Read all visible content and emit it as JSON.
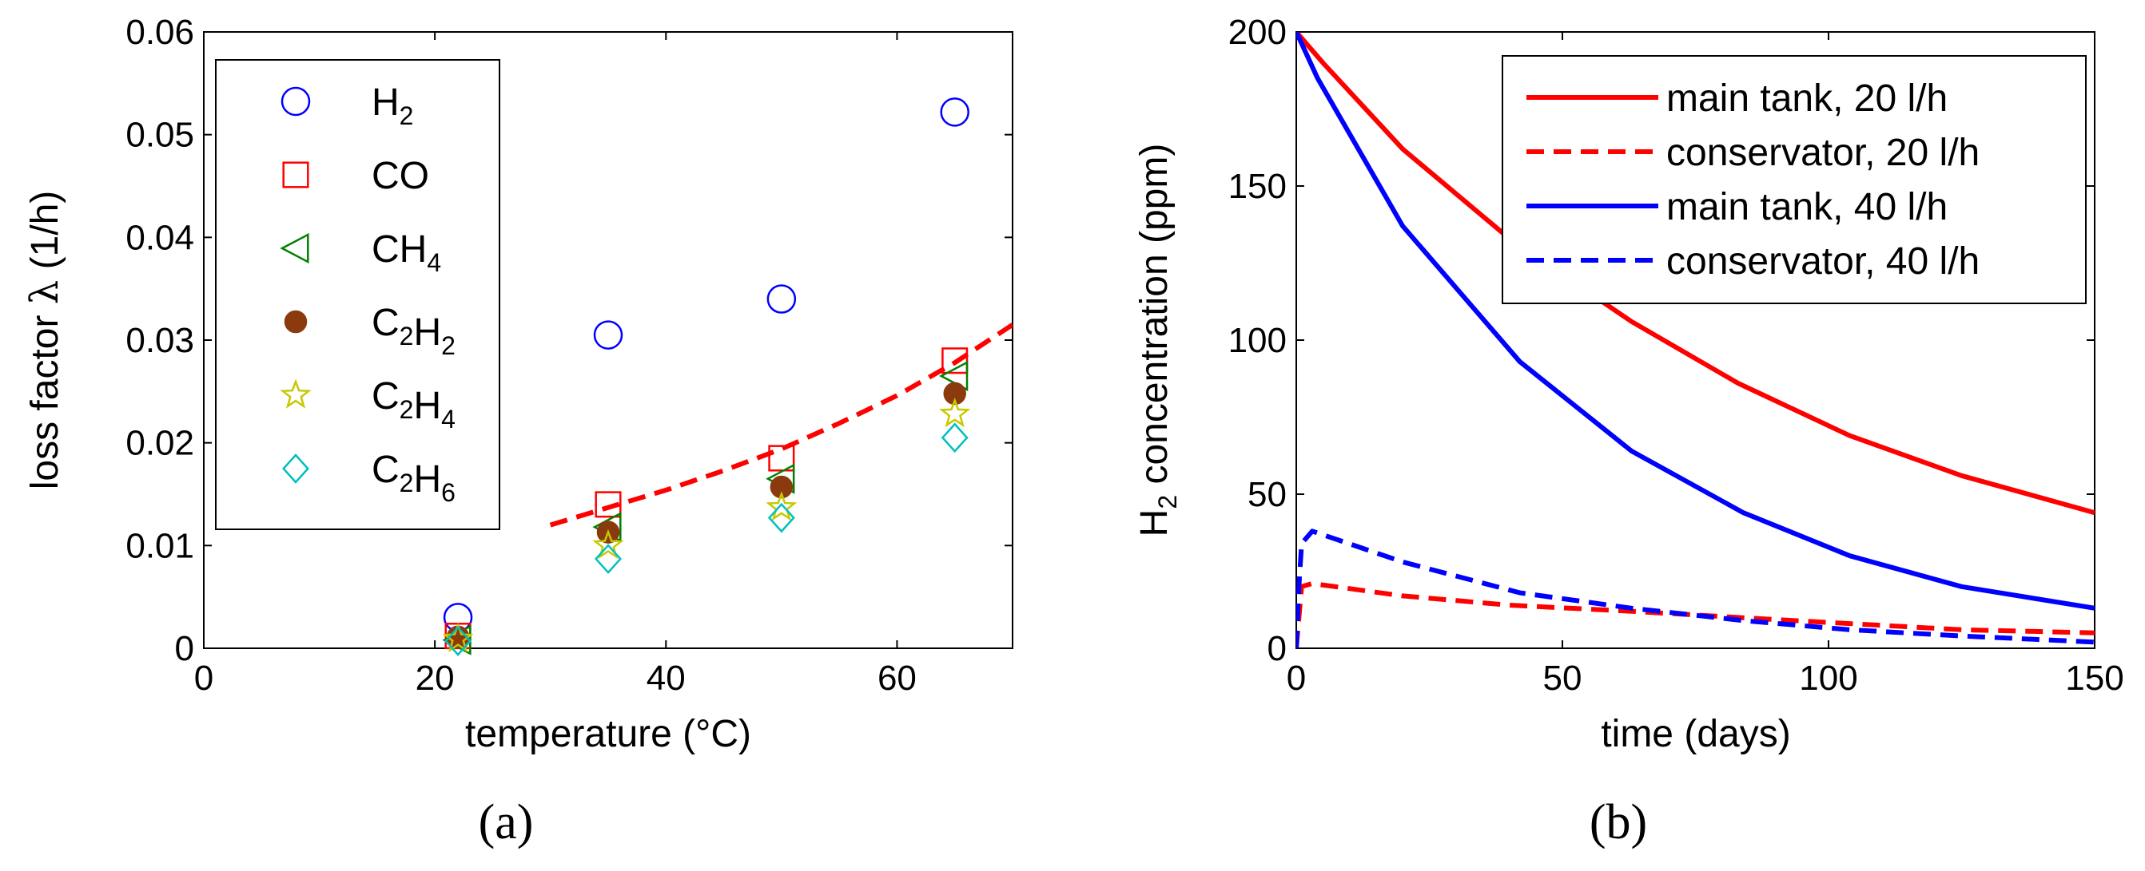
{
  "chart_data": [
    {
      "id": "a",
      "type": "scatter",
      "panel_label": "(a)",
      "xlabel": "temperature (°C)",
      "ylabel": {
        "text": "loss factor ",
        "symbol": "λ",
        "unit": " (1/h)"
      },
      "xlim": [
        0,
        70
      ],
      "ylim": [
        0,
        0.06
      ],
      "xticks": [
        0,
        20,
        40,
        60
      ],
      "yticks": [
        0,
        0.01,
        0.02,
        0.03,
        0.04,
        0.05,
        0.06
      ],
      "ytick_labels": [
        "0",
        "0.01",
        "0.02",
        "0.03",
        "0.04",
        "0.05",
        "0.06"
      ],
      "legend_position": "upper-left",
      "series": [
        {
          "name": "H2",
          "label_main": "H",
          "label_parts": [
            {
              "t": "H",
              "sub": "2"
            }
          ],
          "marker": "circle",
          "color": "#0000ff",
          "filled": false,
          "x": [
            22,
            35,
            50,
            65
          ],
          "y": [
            0.003,
            0.0305,
            0.034,
            0.0522
          ]
        },
        {
          "name": "CO",
          "label_parts": [
            {
              "t": "CO",
              "sub": ""
            }
          ],
          "marker": "square",
          "color": "#ff0000",
          "filled": false,
          "x": [
            22,
            35,
            50,
            65
          ],
          "y": [
            0.0012,
            0.014,
            0.0185,
            0.028
          ]
        },
        {
          "name": "CH4",
          "label_parts": [
            {
              "t": "CH",
              "sub": "4"
            }
          ],
          "marker": "triangle-left",
          "color": "#008000",
          "filled": false,
          "x": [
            22,
            35,
            50,
            65
          ],
          "y": [
            0.0008,
            0.0118,
            0.0165,
            0.0265
          ]
        },
        {
          "name": "C2H2",
          "label_parts": [
            {
              "t": "C",
              "sub": "2"
            },
            {
              "t": "H",
              "sub": "2"
            }
          ],
          "marker": "circle",
          "color": "#8b3a0e",
          "filled": true,
          "x": [
            22,
            35,
            50,
            65
          ],
          "y": [
            0.0011,
            0.0113,
            0.0157,
            0.0248
          ]
        },
        {
          "name": "C2H4",
          "label_parts": [
            {
              "t": "C",
              "sub": "2"
            },
            {
              "t": "H",
              "sub": "4"
            }
          ],
          "marker": "star",
          "color": "#c8c800",
          "filled": false,
          "x": [
            22,
            35,
            50,
            65
          ],
          "y": [
            0.0009,
            0.01,
            0.0137,
            0.0228
          ]
        },
        {
          "name": "C2H6",
          "label_parts": [
            {
              "t": "C",
              "sub": "2"
            },
            {
              "t": "H",
              "sub": "6"
            }
          ],
          "marker": "diamond",
          "color": "#00c0c0",
          "filled": false,
          "x": [
            22,
            35,
            50,
            65
          ],
          "y": [
            0.0007,
            0.0087,
            0.0127,
            0.0205
          ]
        }
      ],
      "fit_line": {
        "name": "fit",
        "color": "#ff0000",
        "style": "dashed",
        "x": [
          30,
          35,
          40,
          45,
          50,
          55,
          60,
          65,
          70
        ],
        "y": [
          0.012,
          0.0137,
          0.0154,
          0.0173,
          0.0194,
          0.0219,
          0.0246,
          0.0278,
          0.0315
        ]
      }
    },
    {
      "id": "b",
      "type": "line",
      "panel_label": "(b)",
      "xlabel": "time (days)",
      "ylabel": {
        "pre": "H",
        "sub": "2",
        "post": " concentration (ppm)"
      },
      "xlim": [
        0,
        150
      ],
      "ylim": [
        0,
        200
      ],
      "xticks": [
        0,
        50,
        100,
        150
      ],
      "yticks": [
        0,
        50,
        100,
        150,
        200
      ],
      "legend_position": "upper-right",
      "series": [
        {
          "name": "main tank, 20 l/h",
          "color": "#ff0000",
          "style": "solid",
          "x": [
            0,
            5,
            20,
            40,
            63,
            83,
            104,
            125,
            150
          ],
          "y": [
            200,
            190,
            162,
            133,
            106,
            86,
            69,
            56,
            44
          ]
        },
        {
          "name": "conservator, 20 l/h",
          "color": "#ff0000",
          "style": "dashed",
          "x": [
            0,
            1,
            3,
            20,
            40,
            63,
            83,
            104,
            125,
            150
          ],
          "y": [
            0,
            20,
            21,
            17,
            14,
            12,
            10,
            8,
            6,
            5
          ]
        },
        {
          "name": "main tank, 40 l/h",
          "color": "#0000ff",
          "style": "solid",
          "x": [
            0,
            4,
            20,
            42,
            63,
            84,
            104,
            125,
            150
          ],
          "y": [
            200,
            185,
            137,
            93,
            64,
            44,
            30,
            20,
            13
          ]
        },
        {
          "name": "conservator, 40 l/h",
          "color": "#0000ff",
          "style": "dashed",
          "x": [
            0,
            0.5,
            1,
            3,
            20,
            42,
            63,
            84,
            104,
            125,
            150
          ],
          "y": [
            0,
            20,
            34,
            38,
            28,
            18,
            13,
            9,
            6,
            4,
            2
          ]
        }
      ]
    }
  ]
}
